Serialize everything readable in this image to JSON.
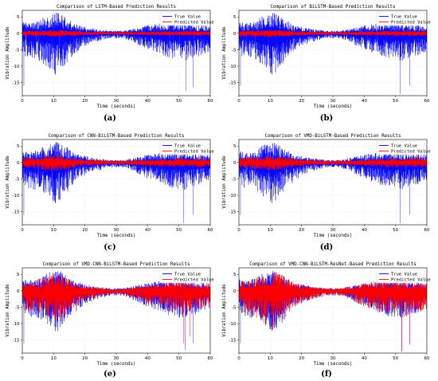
{
  "chart_data": [
    {
      "panel_label": "(a)",
      "type": "line",
      "title": "Comparison of LSTM-Based Prediction Results",
      "xlabel": "Time (seconds)",
      "ylabel": "Vibration Amplitude",
      "xlim": [
        0,
        60
      ],
      "ylim": [
        -19,
        7
      ],
      "xticks": [
        0,
        10,
        20,
        30,
        40,
        50,
        60
      ],
      "yticks": [
        5,
        0,
        -5,
        -10,
        -15
      ],
      "grid": true,
      "legend_position": "top-right",
      "series": [
        {
          "name": "True Value",
          "color": "#0000ff",
          "envelope": {
            "t": [
              0,
              2,
              5,
              8,
              11,
              14,
              17,
              20,
              24,
              28,
              32,
              36,
              40,
              44,
              48,
              52,
              56,
              60
            ],
            "upper": [
              3.5,
              3.2,
              4.0,
              5.5,
              6.5,
              5.0,
              3.0,
              2.0,
              1.2,
              0.8,
              0.8,
              1.5,
              2.5,
              3.0,
              3.2,
              3.0,
              2.5,
              2.5
            ],
            "lower": [
              -6.0,
              -8.0,
              -8.5,
              -10.5,
              -13.0,
              -9.5,
              -6.5,
              -4.0,
              -2.5,
              -1.5,
              -1.5,
              -3.0,
              -5.0,
              -6.5,
              -8.0,
              -8.5,
              -7.0,
              -6.5
            ]
          },
          "spikes": [
            {
              "t": 0.5,
              "v": -16
            },
            {
              "t": 52.2,
              "v": -17.5
            },
            {
              "t": 54.5,
              "v": -16.5
            }
          ]
        },
        {
          "name": "Predicted Value",
          "color": "#ff0000",
          "envelope": {
            "t": [
              0,
              5,
              10,
              15,
              20,
              30,
              40,
              50,
              60
            ],
            "upper": [
              0.8,
              0.9,
              1.2,
              0.9,
              0.6,
              0.4,
              0.6,
              0.8,
              0.7
            ],
            "lower": [
              -0.8,
              -0.9,
              -1.2,
              -0.9,
              -0.6,
              -0.4,
              -0.6,
              -0.8,
              -0.7
            ]
          },
          "spikes": []
        }
      ]
    },
    {
      "panel_label": "(b)",
      "type": "line",
      "title": "Comparison of BiLSTM-Based Prediction Results",
      "xlabel": "Time (seconds)",
      "ylabel": "Vibration Amplitude",
      "xlim": [
        0,
        60
      ],
      "ylim": [
        -19,
        7
      ],
      "xticks": [
        0,
        10,
        20,
        30,
        40,
        50,
        60
      ],
      "yticks": [
        5,
        0,
        -5,
        -10,
        -15
      ],
      "grid": true,
      "legend_position": "top-right",
      "series": [
        {
          "name": "True Value",
          "color": "#0000ff",
          "envelope": {
            "t": [
              0,
              2,
              5,
              8,
              11,
              14,
              17,
              20,
              24,
              28,
              32,
              36,
              40,
              44,
              48,
              52,
              56,
              60
            ],
            "upper": [
              3.5,
              3.2,
              4.0,
              5.5,
              6.5,
              5.0,
              3.0,
              2.0,
              1.2,
              0.8,
              0.8,
              1.5,
              2.5,
              3.0,
              3.2,
              3.0,
              2.5,
              2.5
            ],
            "lower": [
              -6.0,
              -8.0,
              -8.5,
              -10.5,
              -13.0,
              -9.5,
              -6.5,
              -4.0,
              -2.5,
              -1.5,
              -1.5,
              -3.0,
              -5.0,
              -6.5,
              -8.0,
              -8.5,
              -7.0,
              -6.5
            ]
          },
          "spikes": [
            {
              "t": 0.5,
              "v": -16
            },
            {
              "t": 51.5,
              "v": -18.5
            },
            {
              "t": 54.5,
              "v": -16
            }
          ]
        },
        {
          "name": "Predicted Value",
          "color": "#ff0000",
          "envelope": {
            "t": [
              0,
              5,
              10,
              15,
              20,
              30,
              40,
              50,
              60
            ],
            "upper": [
              1.0,
              1.0,
              1.3,
              1.0,
              0.7,
              0.4,
              0.7,
              0.9,
              0.8
            ],
            "lower": [
              -1.0,
              -1.0,
              -1.3,
              -1.0,
              -0.7,
              -0.4,
              -0.7,
              -0.9,
              -0.8
            ]
          },
          "spikes": []
        }
      ]
    },
    {
      "panel_label": "(c)",
      "type": "line",
      "title": "Comparison of CNN-BiLSTM-Based Prediction Results",
      "xlabel": "Time (seconds)",
      "ylabel": "Vibration Amplitude",
      "xlim": [
        0,
        60
      ],
      "ylim": [
        -19,
        7
      ],
      "xticks": [
        0,
        10,
        20,
        30,
        40,
        50,
        60
      ],
      "yticks": [
        5,
        0,
        -5,
        -10,
        -15
      ],
      "grid": true,
      "legend_position": "top-right",
      "series": [
        {
          "name": "True Value",
          "color": "#0000ff",
          "envelope": {
            "t": [
              0,
              2,
              5,
              8,
              11,
              14,
              17,
              20,
              24,
              28,
              32,
              36,
              40,
              44,
              48,
              52,
              56,
              60
            ],
            "upper": [
              3.5,
              3.2,
              4.0,
              5.5,
              6.5,
              5.0,
              3.0,
              2.0,
              1.2,
              0.8,
              0.8,
              1.5,
              2.5,
              3.0,
              3.2,
              3.0,
              2.5,
              2.5
            ],
            "lower": [
              -6.0,
              -8.0,
              -8.5,
              -10.5,
              -13.0,
              -9.5,
              -6.5,
              -4.0,
              -2.5,
              -1.5,
              -1.5,
              -3.0,
              -5.0,
              -6.5,
              -8.0,
              -8.5,
              -7.0,
              -6.5
            ]
          },
          "spikes": [
            {
              "t": 0.5,
              "v": -16
            },
            {
              "t": 51.5,
              "v": -18.5
            },
            {
              "t": 54.5,
              "v": -16
            }
          ]
        },
        {
          "name": "Predicted Value",
          "color": "#ff0000",
          "envelope": {
            "t": [
              0,
              5,
              10,
              15,
              20,
              30,
              40,
              50,
              60
            ],
            "upper": [
              1.5,
              1.8,
              2.5,
              1.8,
              1.0,
              0.6,
              1.0,
              1.4,
              1.2
            ],
            "lower": [
              -1.5,
              -2.0,
              -3.0,
              -2.0,
              -1.0,
              -0.6,
              -1.2,
              -1.6,
              -1.4
            ]
          },
          "spikes": []
        }
      ]
    },
    {
      "panel_label": "(d)",
      "type": "line",
      "title": "Comparison of VMD-BiLSTM-Based Prediction Results",
      "xlabel": "Time (seconds)",
      "ylabel": "Vibration Amplitude",
      "xlim": [
        0,
        60
      ],
      "ylim": [
        -19,
        7
      ],
      "xticks": [
        0,
        10,
        20,
        30,
        40,
        50,
        60
      ],
      "yticks": [
        5,
        0,
        -5,
        -10,
        -15
      ],
      "grid": true,
      "legend_position": "top-right",
      "series": [
        {
          "name": "True Value",
          "color": "#0000ff",
          "envelope": {
            "t": [
              0,
              2,
              5,
              8,
              11,
              14,
              17,
              20,
              24,
              28,
              32,
              36,
              40,
              44,
              48,
              52,
              56,
              60
            ],
            "upper": [
              3.5,
              3.2,
              4.0,
              5.5,
              6.5,
              5.0,
              3.0,
              2.0,
              1.2,
              0.8,
              0.8,
              1.5,
              2.5,
              3.0,
              3.2,
              3.0,
              2.5,
              2.5
            ],
            "lower": [
              -6.0,
              -8.0,
              -8.5,
              -10.5,
              -13.0,
              -9.5,
              -6.5,
              -4.0,
              -2.5,
              -1.5,
              -1.5,
              -3.0,
              -5.0,
              -6.5,
              -8.0,
              -8.5,
              -7.0,
              -6.5
            ]
          },
          "spikes": [
            {
              "t": 0.5,
              "v": -16
            },
            {
              "t": 51.5,
              "v": -18.5
            },
            {
              "t": 54.5,
              "v": -16
            }
          ]
        },
        {
          "name": "Predicted Value",
          "color": "#ff0000",
          "envelope": {
            "t": [
              0,
              5,
              10,
              15,
              20,
              30,
              40,
              50,
              60
            ],
            "upper": [
              1.6,
              1.8,
              2.2,
              1.8,
              1.0,
              0.6,
              1.0,
              1.4,
              1.3
            ],
            "lower": [
              -1.6,
              -2.0,
              -2.6,
              -2.0,
              -1.1,
              -0.6,
              -1.2,
              -1.6,
              -1.5
            ]
          },
          "spikes": []
        }
      ]
    },
    {
      "panel_label": "(e)",
      "type": "line",
      "title": "Comparison of VMD-CNN-BiLSTM-Based Prediction Results",
      "xlabel": "Time (seconds)",
      "ylabel": "Vibration Amplitude",
      "xlim": [
        0,
        60
      ],
      "ylim": [
        -19,
        7
      ],
      "xticks": [
        0,
        10,
        20,
        30,
        40,
        50,
        60
      ],
      "yticks": [
        5,
        0,
        -5,
        -10,
        -15
      ],
      "grid": true,
      "legend_position": "top-right",
      "series": [
        {
          "name": "True Value",
          "color": "#0000ff",
          "envelope": {
            "t": [
              0,
              2,
              5,
              8,
              11,
              14,
              17,
              20,
              24,
              28,
              32,
              36,
              40,
              44,
              48,
              52,
              56,
              60
            ],
            "upper": [
              3.5,
              3.2,
              4.0,
              5.5,
              6.5,
              5.0,
              3.0,
              2.0,
              1.2,
              0.8,
              0.8,
              1.5,
              2.5,
              3.0,
              3.2,
              3.0,
              2.5,
              2.5
            ],
            "lower": [
              -6.0,
              -8.0,
              -8.5,
              -10.5,
              -13.0,
              -9.5,
              -6.5,
              -4.0,
              -2.5,
              -1.5,
              -1.5,
              -3.0,
              -5.0,
              -6.5,
              -8.0,
              -8.5,
              -7.0,
              -6.5
            ]
          },
          "spikes": [
            {
              "t": 0.5,
              "v": -16
            },
            {
              "t": 52.0,
              "v": -18
            },
            {
              "t": 54.5,
              "v": -16
            }
          ]
        },
        {
          "name": "Predicted Value",
          "color": "#ff0000",
          "envelope": {
            "t": [
              0,
              2,
              5,
              8,
              11,
              14,
              17,
              20,
              24,
              28,
              32,
              36,
              40,
              44,
              48,
              52,
              56,
              60
            ],
            "upper": [
              3.0,
              2.8,
              3.5,
              4.5,
              5.5,
              4.2,
              2.5,
              1.6,
              1.0,
              0.7,
              0.7,
              1.3,
              2.0,
              2.5,
              2.7,
              2.5,
              2.0,
              2.0
            ],
            "lower": [
              -5.0,
              -6.5,
              -7.0,
              -8.5,
              -10.0,
              -7.5,
              -5.0,
              -3.2,
              -2.0,
              -1.2,
              -1.2,
              -2.5,
              -4.0,
              -5.2,
              -6.5,
              -7.0,
              -5.5,
              -5.0
            ]
          },
          "spikes": [
            {
              "t": 51.5,
              "v": -16
            },
            {
              "t": 53.5,
              "v": -14
            }
          ]
        }
      ]
    },
    {
      "panel_label": "(f)",
      "type": "line",
      "title": "Comparison of VMD-CNN-BiLSTM-ResNet-Based Prediction Results",
      "xlabel": "Time (seconds)",
      "ylabel": "Vibration Amplitude",
      "xlim": [
        0,
        60
      ],
      "ylim": [
        -19,
        7
      ],
      "xticks": [
        0,
        10,
        20,
        30,
        40,
        50,
        60
      ],
      "yticks": [
        5,
        0,
        -5,
        -10,
        -15
      ],
      "grid": true,
      "legend_position": "top-right",
      "series": [
        {
          "name": "True Value",
          "color": "#0000ff",
          "envelope": {
            "t": [
              0,
              2,
              5,
              8,
              11,
              14,
              17,
              20,
              24,
              28,
              32,
              36,
              40,
              44,
              48,
              52,
              56,
              60
            ],
            "upper": [
              3.5,
              3.2,
              4.0,
              5.5,
              6.5,
              5.0,
              3.0,
              2.0,
              1.2,
              0.8,
              0.8,
              1.5,
              2.5,
              3.0,
              3.2,
              3.0,
              2.5,
              2.5
            ],
            "lower": [
              -6.0,
              -8.0,
              -8.5,
              -10.5,
              -13.0,
              -9.5,
              -6.5,
              -4.0,
              -2.5,
              -1.5,
              -1.5,
              -3.0,
              -5.0,
              -6.5,
              -8.0,
              -8.5,
              -7.0,
              -6.5
            ]
          },
          "spikes": [
            {
              "t": 0.5,
              "v": -16
            },
            {
              "t": 52.0,
              "v": -18.5
            },
            {
              "t": 54.5,
              "v": -16.5
            }
          ]
        },
        {
          "name": "Predicted Value",
          "color": "#ff0000",
          "envelope": {
            "t": [
              0,
              2,
              5,
              8,
              11,
              14,
              17,
              20,
              24,
              28,
              32,
              36,
              40,
              44,
              48,
              52,
              56,
              60
            ],
            "upper": [
              3.3,
              3.0,
              3.8,
              5.2,
              6.2,
              4.8,
              2.8,
              1.9,
              1.1,
              0.8,
              0.8,
              1.4,
              2.4,
              2.9,
              3.0,
              2.8,
              2.3,
              2.3
            ],
            "lower": [
              -5.5,
              -7.5,
              -8.0,
              -10.0,
              -12.0,
              -9.0,
              -6.0,
              -3.8,
              -2.4,
              -1.4,
              -1.4,
              -2.8,
              -4.8,
              -6.2,
              -7.6,
              -8.0,
              -6.6,
              -6.2
            ]
          },
          "spikes": [
            {
              "t": 52.0,
              "v": -18.5
            },
            {
              "t": 54.5,
              "v": -16
            }
          ]
        }
      ]
    }
  ]
}
